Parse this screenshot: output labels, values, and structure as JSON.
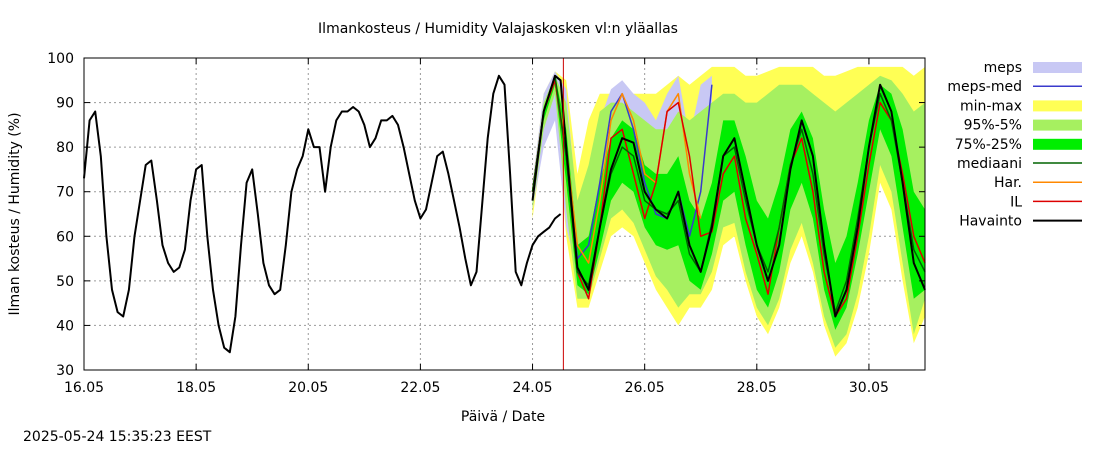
{
  "title": "Ilmankosteus / Humidity  Valajaskosken vl:n yläallas",
  "timestamp": "2025-05-24 15:35:23 EEST",
  "chart_data": {
    "type": "line",
    "title": "Ilmankosteus / Humidity  Valajaskosken vl:n yläallas",
    "xlabel": "Päivä / Date",
    "ylabel": "Ilman kosteus / Humidity (%)",
    "x_unit": "days from 16.05 00:00",
    "xlim": [
      0,
      15
    ],
    "ylim": [
      30,
      100
    ],
    "x_ticks": [
      0,
      2,
      4,
      6,
      8,
      10,
      12,
      14
    ],
    "x_tick_labels": [
      "16.05",
      "18.05",
      "20.05",
      "22.05",
      "24.05",
      "26.05",
      "28.05",
      "30.05"
    ],
    "y_ticks": [
      30,
      40,
      50,
      60,
      70,
      80,
      90,
      100
    ],
    "grid": true,
    "legend_position": "right, outside plot",
    "now_marker_x": 8.55,
    "colors": {
      "meps": "#c8c8f4",
      "meps_med": "#3a3acc",
      "minmax": "#ffff55",
      "p95_5": "#a6f060",
      "p75_25": "#00ee00",
      "mediaani": "#006400",
      "har": "#ff8800",
      "il": "#dd0000",
      "havainto": "#000000",
      "now_line": "#cc0000"
    },
    "legend": [
      "meps",
      "meps-med",
      "min-max",
      "95%-5%",
      "75%-25%",
      "mediaani",
      "Har.",
      "IL",
      "Havainto"
    ],
    "observation": {
      "name": "Havainto",
      "x": [
        0.0,
        0.1,
        0.2,
        0.3,
        0.4,
        0.5,
        0.6,
        0.7,
        0.8,
        0.9,
        1.0,
        1.1,
        1.2,
        1.3,
        1.4,
        1.5,
        1.6,
        1.7,
        1.8,
        1.9,
        2.0,
        2.1,
        2.2,
        2.3,
        2.4,
        2.5,
        2.6,
        2.7,
        2.8,
        2.9,
        3.0,
        3.1,
        3.2,
        3.3,
        3.4,
        3.5,
        3.6,
        3.7,
        3.8,
        3.9,
        4.0,
        4.1,
        4.2,
        4.3,
        4.4,
        4.5,
        4.6,
        4.7,
        4.8,
        4.9,
        5.0,
        5.1,
        5.2,
        5.3,
        5.4,
        5.5,
        5.6,
        5.7,
        5.8,
        5.9,
        6.0,
        6.1,
        6.2,
        6.3,
        6.4,
        6.5,
        6.6,
        6.7,
        6.8,
        6.9,
        7.0,
        7.1,
        7.2,
        7.3,
        7.4,
        7.5,
        7.6,
        7.7,
        7.8,
        7.9,
        8.0,
        8.1,
        8.2,
        8.3,
        8.4,
        8.5
      ],
      "y": [
        73,
        86,
        88,
        78,
        60,
        48,
        43,
        42,
        48,
        60,
        68,
        76,
        77,
        68,
        58,
        54,
        52,
        53,
        57,
        68,
        75,
        76,
        60,
        48,
        40,
        35,
        34,
        42,
        58,
        72,
        75,
        65,
        54,
        49,
        47,
        48,
        58,
        70,
        75,
        78,
        84,
        80,
        80,
        70,
        80,
        86,
        88,
        88,
        89,
        88,
        85,
        80,
        82,
        86,
        86,
        87,
        85,
        80,
        74,
        68,
        64,
        66,
        72,
        78,
        79,
        74,
        68,
        62,
        55,
        49,
        52,
        67,
        82,
        92,
        96,
        94,
        74,
        52,
        49,
        54,
        58,
        60,
        61,
        62,
        64,
        65
      ]
    },
    "series": [
      {
        "name": "Havainto",
        "x": [
          8.0,
          8.2,
          8.4,
          8.5,
          8.6,
          8.8,
          9.0,
          9.2,
          9.4,
          9.6,
          9.8,
          10.0,
          10.2,
          10.4,
          10.6,
          10.8,
          11.0,
          11.2,
          11.4,
          11.6,
          11.8,
          12.0,
          12.2,
          12.4,
          12.6,
          12.8,
          13.0,
          13.2,
          13.4,
          13.6,
          13.8,
          14.0,
          14.2,
          14.4,
          14.6,
          14.8,
          15.0
        ],
        "y": [
          68,
          88,
          96,
          95,
          80,
          53,
          48,
          62,
          75,
          82,
          81,
          70,
          66,
          64,
          70,
          58,
          52,
          62,
          78,
          82,
          70,
          58,
          50,
          58,
          75,
          86,
          78,
          58,
          42,
          48,
          62,
          80,
          94,
          88,
          72,
          54,
          48
        ]
      },
      {
        "name": "mediaani",
        "x": [
          8.0,
          8.2,
          8.4,
          8.6,
          8.8,
          9.0,
          9.2,
          9.4,
          9.6,
          9.8,
          10.0,
          10.2,
          10.4,
          10.6,
          10.8,
          11.0,
          11.2,
          11.4,
          11.6,
          11.8,
          12.0,
          12.2,
          12.4,
          12.6,
          12.8,
          13.0,
          13.2,
          13.4,
          13.6,
          13.8,
          14.0,
          14.2,
          14.4,
          14.6,
          14.8,
          15.0
        ],
        "y": [
          70,
          88,
          96,
          78,
          52,
          49,
          62,
          74,
          80,
          78,
          68,
          66,
          65,
          68,
          56,
          52,
          63,
          78,
          80,
          68,
          58,
          52,
          62,
          76,
          84,
          74,
          56,
          43,
          50,
          64,
          80,
          92,
          86,
          72,
          57,
          52
        ]
      },
      {
        "name": "meps-med",
        "x": [
          8.0,
          8.2,
          8.4,
          8.6,
          8.8,
          9.0,
          9.2,
          9.4,
          9.6,
          9.8,
          10.0,
          10.2,
          10.4,
          10.6,
          10.8,
          11.0,
          11.2
        ],
        "y": [
          70,
          88,
          95,
          78,
          55,
          58,
          72,
          88,
          92,
          84,
          72,
          65,
          64,
          70,
          60,
          70,
          94
        ]
      },
      {
        "name": "Har.",
        "x": [
          8.0,
          8.2,
          8.4,
          8.6,
          8.8,
          9.0,
          9.2,
          9.4,
          9.6,
          9.8,
          10.0,
          10.2,
          10.4,
          10.6,
          10.8,
          11.0
        ],
        "y": [
          70,
          88,
          95,
          80,
          58,
          54,
          68,
          86,
          92,
          86,
          74,
          72,
          88,
          92,
          74,
          64
        ]
      },
      {
        "name": "IL",
        "x": [
          8.0,
          8.2,
          8.4,
          8.6,
          8.8,
          9.0,
          9.2,
          9.4,
          9.6,
          9.8,
          10.0,
          10.2,
          10.4,
          10.6,
          10.8,
          11.0,
          11.2,
          11.4,
          11.6,
          11.8,
          12.0,
          12.2,
          12.4,
          12.6,
          12.8,
          13.0,
          13.2,
          13.4,
          13.6,
          13.8,
          14.0,
          14.2,
          14.4,
          14.6,
          14.8,
          15.0
        ],
        "y": [
          70,
          88,
          95,
          78,
          52,
          46,
          62,
          82,
          84,
          74,
          64,
          72,
          88,
          90,
          78,
          60,
          61,
          74,
          78,
          64,
          56,
          47,
          62,
          76,
          82,
          70,
          52,
          42,
          46,
          60,
          76,
          90,
          86,
          74,
          60,
          54
        ]
      }
    ],
    "bands": [
      {
        "name": "meps",
        "x": [
          8.0,
          8.2,
          8.4,
          8.6,
          8.8,
          9.0,
          9.2,
          9.4,
          9.6,
          9.8,
          10.0,
          10.2,
          10.4,
          10.6,
          10.8,
          11.0,
          11.2
        ],
        "lower": [
          66,
          80,
          86,
          62,
          52,
          52,
          60,
          72,
          80,
          75,
          64,
          60,
          58,
          62,
          55,
          62,
          86
        ],
        "upper": [
          72,
          92,
          97,
          93,
          66,
          70,
          86,
          93,
          95,
          92,
          90,
          86,
          92,
          96,
          82,
          94,
          96
        ]
      },
      {
        "name": "min-max",
        "x": [
          8.0,
          8.2,
          8.4,
          8.6,
          8.8,
          9.0,
          9.2,
          9.4,
          9.6,
          9.8,
          10.0,
          10.2,
          10.4,
          10.6,
          10.8,
          11.0,
          11.2,
          11.4,
          11.6,
          11.8,
          12.0,
          12.2,
          12.4,
          12.6,
          12.8,
          13.0,
          13.2,
          13.4,
          13.6,
          13.8,
          14.0,
          14.2,
          14.4,
          14.6,
          14.8,
          15.0
        ],
        "lower": [
          64,
          82,
          90,
          60,
          44,
          44,
          52,
          60,
          62,
          60,
          54,
          48,
          44,
          40,
          44,
          44,
          48,
          58,
          60,
          50,
          42,
          38,
          44,
          54,
          60,
          52,
          40,
          33,
          36,
          44,
          56,
          72,
          66,
          50,
          36,
          42
        ],
        "upper": [
          72,
          92,
          97,
          95,
          74,
          86,
          92,
          92,
          92,
          92,
          92,
          92,
          94,
          96,
          94,
          96,
          98,
          98,
          98,
          96,
          96,
          97,
          98,
          98,
          98,
          98,
          96,
          96,
          97,
          98,
          98,
          98,
          98,
          98,
          96,
          98
        ]
      },
      {
        "name": "95%-5%",
        "x": [
          8.0,
          8.2,
          8.4,
          8.6,
          8.8,
          9.0,
          9.2,
          9.4,
          9.6,
          9.8,
          10.0,
          10.2,
          10.4,
          10.6,
          10.8,
          11.0,
          11.2,
          11.4,
          11.6,
          11.8,
          12.0,
          12.2,
          12.4,
          12.6,
          12.8,
          13.0,
          13.2,
          13.4,
          13.6,
          13.8,
          14.0,
          14.2,
          14.4,
          14.6,
          14.8,
          15.0
        ],
        "lower": [
          66,
          84,
          92,
          66,
          46,
          46,
          55,
          64,
          66,
          63,
          57,
          51,
          48,
          44,
          47,
          47,
          52,
          62,
          63,
          52,
          44,
          40,
          46,
          57,
          63,
          54,
          42,
          35,
          38,
          47,
          60,
          76,
          70,
          54,
          38,
          46
        ],
        "upper": [
          71,
          90,
          96,
          90,
          68,
          76,
          88,
          90,
          90,
          88,
          86,
          84,
          84,
          88,
          86,
          88,
          90,
          92,
          92,
          90,
          90,
          92,
          94,
          94,
          94,
          92,
          90,
          88,
          90,
          92,
          94,
          96,
          95,
          92,
          88,
          90
        ]
      },
      {
        "name": "75%-25%",
        "x": [
          8.0,
          8.2,
          8.4,
          8.6,
          8.8,
          9.0,
          9.2,
          9.4,
          9.6,
          9.8,
          10.0,
          10.2,
          10.4,
          10.6,
          10.8,
          11.0,
          11.2,
          11.4,
          11.6,
          11.8,
          12.0,
          12.2,
          12.4,
          12.6,
          12.8,
          13.0,
          13.2,
          13.4,
          13.6,
          13.8,
          14.0,
          14.2,
          14.4,
          14.6,
          14.8,
          15.0
        ],
        "lower": [
          68,
          86,
          94,
          72,
          49,
          47,
          57,
          68,
          72,
          70,
          62,
          58,
          57,
          58,
          50,
          48,
          56,
          68,
          70,
          58,
          48,
          44,
          52,
          66,
          72,
          64,
          48,
          39,
          44,
          56,
          70,
          84,
          78,
          62,
          46,
          48
        ],
        "upper": [
          71,
          89,
          96,
          84,
          58,
          60,
          72,
          82,
          86,
          84,
          76,
          74,
          74,
          78,
          68,
          64,
          72,
          86,
          86,
          78,
          68,
          64,
          72,
          84,
          88,
          82,
          66,
          54,
          60,
          72,
          86,
          94,
          92,
          84,
          70,
          66
        ]
      }
    ]
  }
}
